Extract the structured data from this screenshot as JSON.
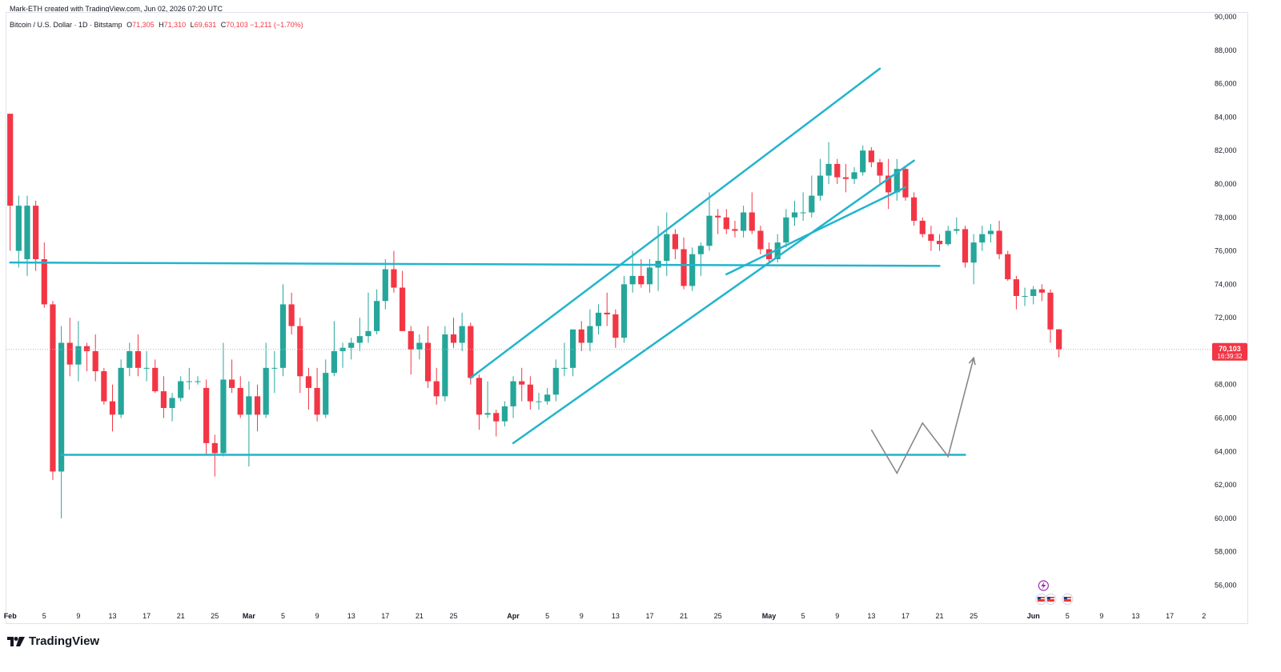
{
  "header": {
    "created_text": "Mark-ETH created with TradingView.com, Jun 02, 2026 07:20 UTC"
  },
  "legend": {
    "symbol": "Bitcoin / U.S. Dollar · 1D · Bitstamp",
    "open_label": "O",
    "open": "71,305",
    "high_label": "H",
    "high": "71,310",
    "low_label": "L",
    "low": "69,631",
    "close_label": "C",
    "close": "70,103",
    "change": "−1,211 (−1.70%)"
  },
  "price_badge": {
    "price": "70,103",
    "countdown": "16:39:32"
  },
  "logo": {
    "text": "TradingView",
    "icon": "tradingview-logo-icon"
  },
  "event_icons": [
    "lightning-event-icon",
    "us-flag-event-icon",
    "us-flag-event-icon",
    "us-flag-event-icon"
  ],
  "colors": {
    "up": "#26a69a",
    "down": "#f23645",
    "drawing": "#22b4cc",
    "pattern": "#888888",
    "grid": "#f0f3fa",
    "text": "#131722"
  },
  "chart_data": {
    "type": "candlestick",
    "title": "Bitcoin / U.S. Dollar · 1D · Bitstamp",
    "timeframe": "1D",
    "yrange": [
      55000,
      90000
    ],
    "y_ticks": [
      {
        "value": 56000,
        "label": "56,000"
      },
      {
        "value": 58000,
        "label": "58,000"
      },
      {
        "value": 60000,
        "label": "60,000"
      },
      {
        "value": 62000,
        "label": "62,000"
      },
      {
        "value": 64000,
        "label": "64,000"
      },
      {
        "value": 66000,
        "label": "66,000"
      },
      {
        "value": 68000,
        "label": "68,000"
      },
      {
        "value": 70000,
        "label": "70,000"
      },
      {
        "value": 72000,
        "label": "72,000"
      },
      {
        "value": 74000,
        "label": "74,000"
      },
      {
        "value": 76000,
        "label": "76,000"
      },
      {
        "value": 78000,
        "label": "78,000"
      },
      {
        "value": 80000,
        "label": "80,000"
      },
      {
        "value": 82000,
        "label": "82,000"
      },
      {
        "value": 84000,
        "label": "84,000"
      },
      {
        "value": 86000,
        "label": "86,000"
      },
      {
        "value": 88000,
        "label": "88,000"
      },
      {
        "value": 90000,
        "label": "90,000"
      }
    ],
    "x_ticks": [
      {
        "day": 1,
        "label": "Feb"
      },
      {
        "day": 5,
        "label": "5"
      },
      {
        "day": 9,
        "label": "9"
      },
      {
        "day": 13,
        "label": "13"
      },
      {
        "day": 17,
        "label": "17"
      },
      {
        "day": 21,
        "label": "21"
      },
      {
        "day": 25,
        "label": "25"
      },
      {
        "day": 29,
        "label": "Mar"
      },
      {
        "day": 33,
        "label": "5"
      },
      {
        "day": 37,
        "label": "9"
      },
      {
        "day": 41,
        "label": "13"
      },
      {
        "day": 45,
        "label": "17"
      },
      {
        "day": 49,
        "label": "21"
      },
      {
        "day": 53,
        "label": "25"
      },
      {
        "day": 60,
        "label": "Apr"
      },
      {
        "day": 64,
        "label": "5"
      },
      {
        "day": 68,
        "label": "9"
      },
      {
        "day": 72,
        "label": "13"
      },
      {
        "day": 76,
        "label": "17"
      },
      {
        "day": 80,
        "label": "21"
      },
      {
        "day": 84,
        "label": "25"
      },
      {
        "day": 90,
        "label": "May"
      },
      {
        "day": 94,
        "label": "5"
      },
      {
        "day": 98,
        "label": "9"
      },
      {
        "day": 102,
        "label": "13"
      },
      {
        "day": 106,
        "label": "17"
      },
      {
        "day": 110,
        "label": "21"
      },
      {
        "day": 114,
        "label": "25"
      },
      {
        "day": 121,
        "label": "Jun"
      },
      {
        "day": 125,
        "label": "5"
      },
      {
        "day": 129,
        "label": "9"
      },
      {
        "day": 133,
        "label": "13"
      },
      {
        "day": 137,
        "label": "17"
      },
      {
        "day": 141,
        "label": "2"
      }
    ],
    "candles": [
      {
        "d": 1,
        "o": 84200,
        "h": 84200,
        "l": 76000,
        "c": 78700
      },
      {
        "d": 2,
        "o": 76000,
        "h": 79300,
        "l": 75000,
        "c": 78700
      },
      {
        "d": 3,
        "o": 75500,
        "h": 79300,
        "l": 74500,
        "c": 78700
      },
      {
        "d": 4,
        "o": 78700,
        "h": 79000,
        "l": 74800,
        "c": 75500
      },
      {
        "d": 5,
        "o": 75500,
        "h": 76500,
        "l": 72600,
        "c": 72800
      },
      {
        "d": 6,
        "o": 72800,
        "h": 73000,
        "l": 62300,
        "c": 62800
      },
      {
        "d": 7,
        "o": 62800,
        "h": 71500,
        "l": 60000,
        "c": 70500
      },
      {
        "d": 8,
        "o": 70500,
        "h": 72000,
        "l": 68500,
        "c": 69200
      },
      {
        "d": 9,
        "o": 69200,
        "h": 71800,
        "l": 68200,
        "c": 70300
      },
      {
        "d": 10,
        "o": 70300,
        "h": 70500,
        "l": 68800,
        "c": 70000
      },
      {
        "d": 11,
        "o": 70000,
        "h": 71000,
        "l": 68200,
        "c": 68800
      },
      {
        "d": 12,
        "o": 68800,
        "h": 69000,
        "l": 66800,
        "c": 67000
      },
      {
        "d": 13,
        "o": 67000,
        "h": 68000,
        "l": 65200,
        "c": 66200
      },
      {
        "d": 14,
        "o": 66200,
        "h": 69500,
        "l": 66000,
        "c": 69000
      },
      {
        "d": 15,
        "o": 69000,
        "h": 70500,
        "l": 68500,
        "c": 70000
      },
      {
        "d": 16,
        "o": 70000,
        "h": 71000,
        "l": 68500,
        "c": 69000
      },
      {
        "d": 17,
        "o": 69000,
        "h": 70000,
        "l": 68200,
        "c": 69000
      },
      {
        "d": 18,
        "o": 69000,
        "h": 69500,
        "l": 67500,
        "c": 67600
      },
      {
        "d": 19,
        "o": 67600,
        "h": 68500,
        "l": 66000,
        "c": 66600
      },
      {
        "d": 20,
        "o": 66600,
        "h": 67500,
        "l": 65800,
        "c": 67200
      },
      {
        "d": 21,
        "o": 67200,
        "h": 68500,
        "l": 67000,
        "c": 68200
      },
      {
        "d": 22,
        "o": 68200,
        "h": 69000,
        "l": 67700,
        "c": 68200
      },
      {
        "d": 23,
        "o": 68200,
        "h": 68500,
        "l": 68000,
        "c": 68200
      },
      {
        "d": 24,
        "o": 67800,
        "h": 68300,
        "l": 63800,
        "c": 64500
      },
      {
        "d": 25,
        "o": 64500,
        "h": 65000,
        "l": 62500,
        "c": 63900
      },
      {
        "d": 26,
        "o": 63900,
        "h": 70500,
        "l": 63700,
        "c": 68300
      },
      {
        "d": 27,
        "o": 68300,
        "h": 69500,
        "l": 67500,
        "c": 67800
      },
      {
        "d": 28,
        "o": 67800,
        "h": 68500,
        "l": 66000,
        "c": 66200
      },
      {
        "d": 29,
        "o": 66200,
        "h": 68200,
        "l": 63100,
        "c": 67300
      },
      {
        "d": 30,
        "o": 67300,
        "h": 68000,
        "l": 65200,
        "c": 66200
      },
      {
        "d": 31,
        "o": 66200,
        "h": 70500,
        "l": 66000,
        "c": 69000
      },
      {
        "d": 32,
        "o": 69000,
        "h": 70000,
        "l": 67500,
        "c": 69000
      },
      {
        "d": 33,
        "o": 69000,
        "h": 74000,
        "l": 68500,
        "c": 72800
      },
      {
        "d": 34,
        "o": 72800,
        "h": 73500,
        "l": 71000,
        "c": 71500
      },
      {
        "d": 35,
        "o": 71500,
        "h": 72000,
        "l": 67500,
        "c": 68500
      },
      {
        "d": 36,
        "o": 68500,
        "h": 69000,
        "l": 66500,
        "c": 67800
      },
      {
        "d": 37,
        "o": 67800,
        "h": 69000,
        "l": 65800,
        "c": 66200
      },
      {
        "d": 38,
        "o": 66200,
        "h": 69500,
        "l": 66000,
        "c": 68700
      },
      {
        "d": 39,
        "o": 68700,
        "h": 71800,
        "l": 68500,
        "c": 70000
      },
      {
        "d": 40,
        "o": 70000,
        "h": 70500,
        "l": 69000,
        "c": 70200
      },
      {
        "d": 41,
        "o": 70200,
        "h": 70800,
        "l": 69500,
        "c": 70500
      },
      {
        "d": 42,
        "o": 70500,
        "h": 72000,
        "l": 70000,
        "c": 70900
      },
      {
        "d": 43,
        "o": 70900,
        "h": 73500,
        "l": 70500,
        "c": 71200
      },
      {
        "d": 44,
        "o": 71200,
        "h": 73700,
        "l": 71000,
        "c": 73000
      },
      {
        "d": 45,
        "o": 73000,
        "h": 75500,
        "l": 72500,
        "c": 74900
      },
      {
        "d": 46,
        "o": 74900,
        "h": 76000,
        "l": 73500,
        "c": 73800
      },
      {
        "d": 47,
        "o": 73800,
        "h": 74800,
        "l": 71500,
        "c": 71200
      },
      {
        "d": 48,
        "o": 71200,
        "h": 71500,
        "l": 68600,
        "c": 70100
      },
      {
        "d": 49,
        "o": 70100,
        "h": 71000,
        "l": 69500,
        "c": 70500
      },
      {
        "d": 50,
        "o": 70500,
        "h": 71500,
        "l": 67800,
        "c": 68200
      },
      {
        "d": 51,
        "o": 68200,
        "h": 69000,
        "l": 66800,
        "c": 67300
      },
      {
        "d": 52,
        "o": 67300,
        "h": 71500,
        "l": 67000,
        "c": 71000
      },
      {
        "d": 53,
        "o": 71000,
        "h": 72000,
        "l": 70200,
        "c": 70500
      },
      {
        "d": 54,
        "o": 70500,
        "h": 72300,
        "l": 70000,
        "c": 71500
      },
      {
        "d": 55,
        "o": 71500,
        "h": 71700,
        "l": 68000,
        "c": 68400
      },
      {
        "d": 56,
        "o": 68400,
        "h": 68600,
        "l": 65300,
        "c": 66200
      },
      {
        "d": 57,
        "o": 66200,
        "h": 68200,
        "l": 66000,
        "c": 66300
      },
      {
        "d": 58,
        "o": 66300,
        "h": 66500,
        "l": 64900,
        "c": 65800
      },
      {
        "d": 59,
        "o": 65800,
        "h": 67000,
        "l": 65500,
        "c": 66700
      },
      {
        "d": 60,
        "o": 66700,
        "h": 68500,
        "l": 66000,
        "c": 68200
      },
      {
        "d": 61,
        "o": 68200,
        "h": 69000,
        "l": 67000,
        "c": 68000
      },
      {
        "d": 62,
        "o": 68000,
        "h": 68500,
        "l": 66500,
        "c": 67000
      },
      {
        "d": 63,
        "o": 67000,
        "h": 67500,
        "l": 66500,
        "c": 67000
      },
      {
        "d": 64,
        "o": 67000,
        "h": 67800,
        "l": 66800,
        "c": 67400
      },
      {
        "d": 65,
        "o": 67400,
        "h": 69500,
        "l": 67000,
        "c": 69000
      },
      {
        "d": 66,
        "o": 69000,
        "h": 70500,
        "l": 68500,
        "c": 69000
      },
      {
        "d": 67,
        "o": 69000,
        "h": 71000,
        "l": 68500,
        "c": 71300
      },
      {
        "d": 68,
        "o": 71300,
        "h": 71800,
        "l": 70000,
        "c": 70500
      },
      {
        "d": 69,
        "o": 70500,
        "h": 72500,
        "l": 70000,
        "c": 71500
      },
      {
        "d": 70,
        "o": 71500,
        "h": 72800,
        "l": 71000,
        "c": 72300
      },
      {
        "d": 71,
        "o": 72300,
        "h": 73500,
        "l": 71500,
        "c": 72200
      },
      {
        "d": 72,
        "o": 72200,
        "h": 72500,
        "l": 70200,
        "c": 70800
      },
      {
        "d": 73,
        "o": 70800,
        "h": 74500,
        "l": 70500,
        "c": 74000
      },
      {
        "d": 74,
        "o": 74000,
        "h": 76000,
        "l": 73500,
        "c": 74500
      },
      {
        "d": 75,
        "o": 74500,
        "h": 75500,
        "l": 73800,
        "c": 74000
      },
      {
        "d": 76,
        "o": 74000,
        "h": 75500,
        "l": 73500,
        "c": 75000
      },
      {
        "d": 77,
        "o": 75000,
        "h": 77500,
        "l": 73600,
        "c": 75400
      },
      {
        "d": 78,
        "o": 75400,
        "h": 78300,
        "l": 74500,
        "c": 77000
      },
      {
        "d": 79,
        "o": 77000,
        "h": 77300,
        "l": 75500,
        "c": 76100
      },
      {
        "d": 80,
        "o": 76100,
        "h": 76800,
        "l": 73700,
        "c": 73900
      },
      {
        "d": 81,
        "o": 73900,
        "h": 76200,
        "l": 73600,
        "c": 75800
      },
      {
        "d": 82,
        "o": 75800,
        "h": 76500,
        "l": 74500,
        "c": 76300
      },
      {
        "d": 83,
        "o": 76300,
        "h": 79500,
        "l": 76000,
        "c": 78100
      },
      {
        "d": 84,
        "o": 78100,
        "h": 78500,
        "l": 77000,
        "c": 78000
      },
      {
        "d": 85,
        "o": 78000,
        "h": 78500,
        "l": 77000,
        "c": 77300
      },
      {
        "d": 86,
        "o": 77300,
        "h": 77800,
        "l": 76800,
        "c": 77200
      },
      {
        "d": 87,
        "o": 77200,
        "h": 78700,
        "l": 76800,
        "c": 78300
      },
      {
        "d": 88,
        "o": 78300,
        "h": 79500,
        "l": 77000,
        "c": 77200
      },
      {
        "d": 89,
        "o": 77200,
        "h": 77500,
        "l": 75800,
        "c": 76100
      },
      {
        "d": 90,
        "o": 76100,
        "h": 76500,
        "l": 75300,
        "c": 75500
      },
      {
        "d": 91,
        "o": 75500,
        "h": 77000,
        "l": 75300,
        "c": 76500
      },
      {
        "d": 92,
        "o": 76500,
        "h": 78500,
        "l": 76200,
        "c": 78000
      },
      {
        "d": 93,
        "o": 78000,
        "h": 79000,
        "l": 77500,
        "c": 78300
      },
      {
        "d": 94,
        "o": 78300,
        "h": 79500,
        "l": 77800,
        "c": 78300
      },
      {
        "d": 95,
        "o": 78300,
        "h": 80500,
        "l": 78000,
        "c": 79300
      },
      {
        "d": 96,
        "o": 79300,
        "h": 81500,
        "l": 79000,
        "c": 80500
      },
      {
        "d": 97,
        "o": 80500,
        "h": 82500,
        "l": 80000,
        "c": 81200
      },
      {
        "d": 98,
        "o": 81200,
        "h": 81500,
        "l": 80000,
        "c": 80400
      },
      {
        "d": 99,
        "o": 80400,
        "h": 81200,
        "l": 79500,
        "c": 80300
      },
      {
        "d": 100,
        "o": 80300,
        "h": 81000,
        "l": 80000,
        "c": 80700
      },
      {
        "d": 101,
        "o": 80700,
        "h": 82300,
        "l": 80500,
        "c": 82000
      },
      {
        "d": 102,
        "o": 82000,
        "h": 82200,
        "l": 81000,
        "c": 81300
      },
      {
        "d": 103,
        "o": 81300,
        "h": 81500,
        "l": 80000,
        "c": 80500
      },
      {
        "d": 104,
        "o": 80500,
        "h": 81500,
        "l": 78500,
        "c": 79500
      },
      {
        "d": 105,
        "o": 79500,
        "h": 81500,
        "l": 79000,
        "c": 80900
      },
      {
        "d": 106,
        "o": 80900,
        "h": 81000,
        "l": 79000,
        "c": 79200
      },
      {
        "d": 107,
        "o": 79200,
        "h": 79500,
        "l": 77500,
        "c": 77800
      },
      {
        "d": 108,
        "o": 77800,
        "h": 78000,
        "l": 76800,
        "c": 77000
      },
      {
        "d": 109,
        "o": 77000,
        "h": 77500,
        "l": 76000,
        "c": 76600
      },
      {
        "d": 110,
        "o": 76600,
        "h": 77000,
        "l": 76000,
        "c": 76400
      },
      {
        "d": 111,
        "o": 76400,
        "h": 77500,
        "l": 76300,
        "c": 77200
      },
      {
        "d": 112,
        "o": 77200,
        "h": 78000,
        "l": 77000,
        "c": 77300
      },
      {
        "d": 113,
        "o": 77300,
        "h": 77500,
        "l": 75000,
        "c": 75300
      },
      {
        "d": 114,
        "o": 75300,
        "h": 77000,
        "l": 74000,
        "c": 76500
      },
      {
        "d": 115,
        "o": 76500,
        "h": 77500,
        "l": 76000,
        "c": 77000
      },
      {
        "d": 116,
        "o": 77000,
        "h": 77600,
        "l": 76500,
        "c": 77200
      },
      {
        "d": 117,
        "o": 77200,
        "h": 77800,
        "l": 75500,
        "c": 75800
      },
      {
        "d": 118,
        "o": 75800,
        "h": 76000,
        "l": 74200,
        "c": 74300
      },
      {
        "d": 119,
        "o": 74300,
        "h": 74500,
        "l": 72500,
        "c": 73300
      },
      {
        "d": 120,
        "o": 73300,
        "h": 73800,
        "l": 72700,
        "c": 73300
      },
      {
        "d": 121,
        "o": 73300,
        "h": 73900,
        "l": 72800,
        "c": 73700
      },
      {
        "d": 122,
        "o": 73700,
        "h": 74000,
        "l": 73000,
        "c": 73500
      },
      {
        "d": 123,
        "o": 73500,
        "h": 73700,
        "l": 70500,
        "c": 71300
      },
      {
        "d": 124,
        "o": 71305,
        "h": 71310,
        "l": 69631,
        "c": 70103
      }
    ],
    "drawings": [
      {
        "name": "horizontal-resistance-line",
        "points": [
          [
            1,
            75300
          ],
          [
            110,
            75100
          ]
        ]
      },
      {
        "name": "horizontal-support-line",
        "points": [
          [
            7,
            63800
          ],
          [
            113,
            63800
          ]
        ]
      },
      {
        "name": "channel-upper-line",
        "points": [
          [
            55,
            68400
          ],
          [
            103,
            86900
          ]
        ]
      },
      {
        "name": "channel-lower-line",
        "points": [
          [
            60,
            64500
          ],
          [
            107,
            81400
          ]
        ]
      },
      {
        "name": "channel-mid-line",
        "points": [
          [
            85,
            74600
          ],
          [
            106,
            79800
          ]
        ]
      }
    ],
    "projection": {
      "points": [
        [
          102,
          65300
        ],
        [
          105,
          62700
        ],
        [
          108,
          65700
        ],
        [
          111,
          63700
        ],
        [
          114,
          69600
        ]
      ]
    },
    "last_price": 70103
  }
}
